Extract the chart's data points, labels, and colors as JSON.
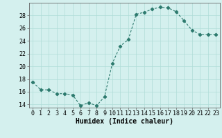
{
  "x": [
    0,
    1,
    2,
    3,
    4,
    5,
    6,
    7,
    8,
    9,
    10,
    11,
    12,
    13,
    14,
    15,
    16,
    17,
    18,
    19,
    20,
    21,
    22,
    23
  ],
  "y": [
    17.5,
    16.3,
    16.3,
    15.7,
    15.7,
    15.5,
    13.8,
    14.3,
    13.8,
    15.2,
    20.5,
    23.2,
    24.2,
    28.2,
    28.5,
    29.0,
    29.3,
    29.2,
    28.6,
    27.2,
    25.7,
    25.0,
    25.0,
    25.0
  ],
  "line_color": "#2d7a6e",
  "marker": "D",
  "marker_size": 2.2,
  "bg_color": "#d4f0ee",
  "grid_color": "#b0dcd8",
  "xlabel": "Humidex (Indice chaleur)",
  "ylim": [
    13.5,
    30.0
  ],
  "xlim": [
    -0.5,
    23.5
  ],
  "yticks": [
    14,
    16,
    18,
    20,
    22,
    24,
    26,
    28
  ],
  "xticks": [
    0,
    1,
    2,
    3,
    4,
    5,
    6,
    7,
    8,
    9,
    10,
    11,
    12,
    13,
    14,
    15,
    16,
    17,
    18,
    19,
    20,
    21,
    22,
    23
  ],
  "xlabel_fontsize": 7,
  "tick_fontsize": 6
}
